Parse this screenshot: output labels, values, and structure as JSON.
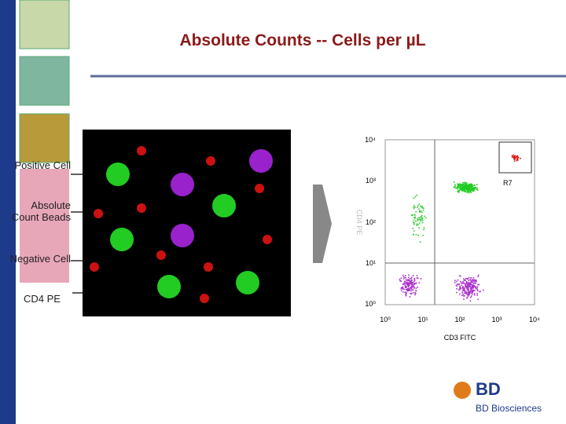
{
  "slide": {
    "title": "Absolute Counts -- Cells per µL",
    "labels": [
      "Positive Cell",
      "Absolute Count Beads",
      "Negative Cell",
      "CD4 PE"
    ]
  },
  "plot": {
    "x_label": "CD3 FITC",
    "y_label": "CD4 PE",
    "gate": "R7",
    "xticks": [
      "10⁰",
      "10¹",
      "10²",
      "10³",
      "10⁴"
    ],
    "yticks": [
      "10⁰",
      "10¹",
      "10²",
      "10³",
      "10⁴"
    ]
  },
  "logo": {
    "mark": "BD",
    "name": "BD Biosciences"
  }
}
